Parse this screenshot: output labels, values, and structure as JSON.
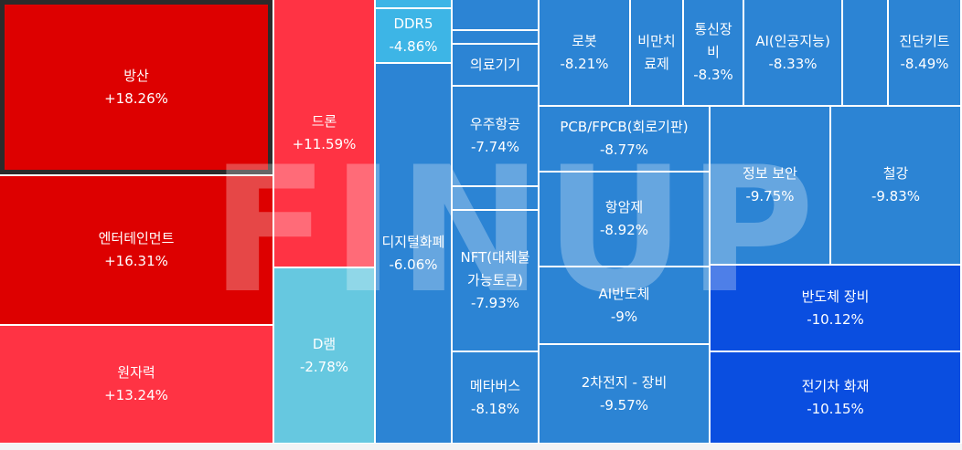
{
  "watermark": "FINUP",
  "chart_data": {
    "type": "treemap",
    "tiles": [
      {
        "name": "방산",
        "value": "+18.26%",
        "change": 18.26,
        "color": "#dd0000",
        "selected": true
      },
      {
        "name": "엔터테인먼트",
        "value": "+16.31%",
        "change": 16.31,
        "color": "#dd0000"
      },
      {
        "name": "원자력",
        "value": "+13.24%",
        "change": 13.24,
        "color": "#ff3344"
      },
      {
        "name": "드론",
        "value": "+11.59%",
        "change": 11.59,
        "color": "#ff3344"
      },
      {
        "name": "D램",
        "value": "-2.78%",
        "change": -2.78,
        "color": "#66c8e0"
      },
      {
        "name": "",
        "value": "",
        "color": "#3db5e6"
      },
      {
        "name": "DDR5",
        "value": "-4.86%",
        "change": -4.86,
        "color": "#3db5e6"
      },
      {
        "name": "디지털화폐",
        "value": "-6.06%",
        "change": -6.06,
        "color": "#2c84d4"
      },
      {
        "name": "",
        "value": "",
        "color": "#2c84d4"
      },
      {
        "name": "",
        "value": "",
        "color": "#2c84d4"
      },
      {
        "name": "의료기기",
        "value": "",
        "color": "#2c84d4"
      },
      {
        "name": "우주항공",
        "value": "-7.74%",
        "change": -7.74,
        "color": "#2c84d4"
      },
      {
        "name": "",
        "value": "",
        "color": "#2c84d4"
      },
      {
        "name": "NFT(대체불가능토큰)",
        "value": "-7.93%",
        "change": -7.93,
        "color": "#2c84d4"
      },
      {
        "name": "메타버스",
        "value": "-8.18%",
        "change": -8.18,
        "color": "#2c84d4"
      },
      {
        "name": "로봇",
        "value": "-8.21%",
        "change": -8.21,
        "color": "#2c84d4"
      },
      {
        "name": "비만치료제",
        "value": "",
        "color": "#2c84d4"
      },
      {
        "name": "통신장비",
        "value": "-8.3%",
        "change": -8.3,
        "color": "#2c84d4"
      },
      {
        "name": "AI(인공지능)",
        "value": "-8.33%",
        "change": -8.33,
        "color": "#2c84d4"
      },
      {
        "name": "",
        "value": "",
        "color": "#2c84d4"
      },
      {
        "name": "진단키트",
        "value": "-8.49%",
        "change": -8.49,
        "color": "#2c84d4"
      },
      {
        "name": "PCB/FPCB(회로기판)",
        "value": "-8.77%",
        "change": -8.77,
        "color": "#2c84d4"
      },
      {
        "name": "항암제",
        "value": "-8.92%",
        "change": -8.92,
        "color": "#2c84d4"
      },
      {
        "name": "AI반도체",
        "value": "-9%",
        "change": -9.0,
        "color": "#2c84d4"
      },
      {
        "name": "2차전지 - 장비",
        "value": "-9.57%",
        "change": -9.57,
        "color": "#2c84d4"
      },
      {
        "name": "정보 보안",
        "value": "-9.75%",
        "change": -9.75,
        "color": "#2c84d4"
      },
      {
        "name": "철강",
        "value": "-9.83%",
        "change": -9.83,
        "color": "#2c84d4"
      },
      {
        "name": "반도체 장비",
        "value": "-10.12%",
        "change": -10.12,
        "color": "#0a4ee0"
      },
      {
        "name": "전기차 화재",
        "value": "-10.15%",
        "change": -10.15,
        "color": "#0a4ee0"
      }
    ]
  }
}
